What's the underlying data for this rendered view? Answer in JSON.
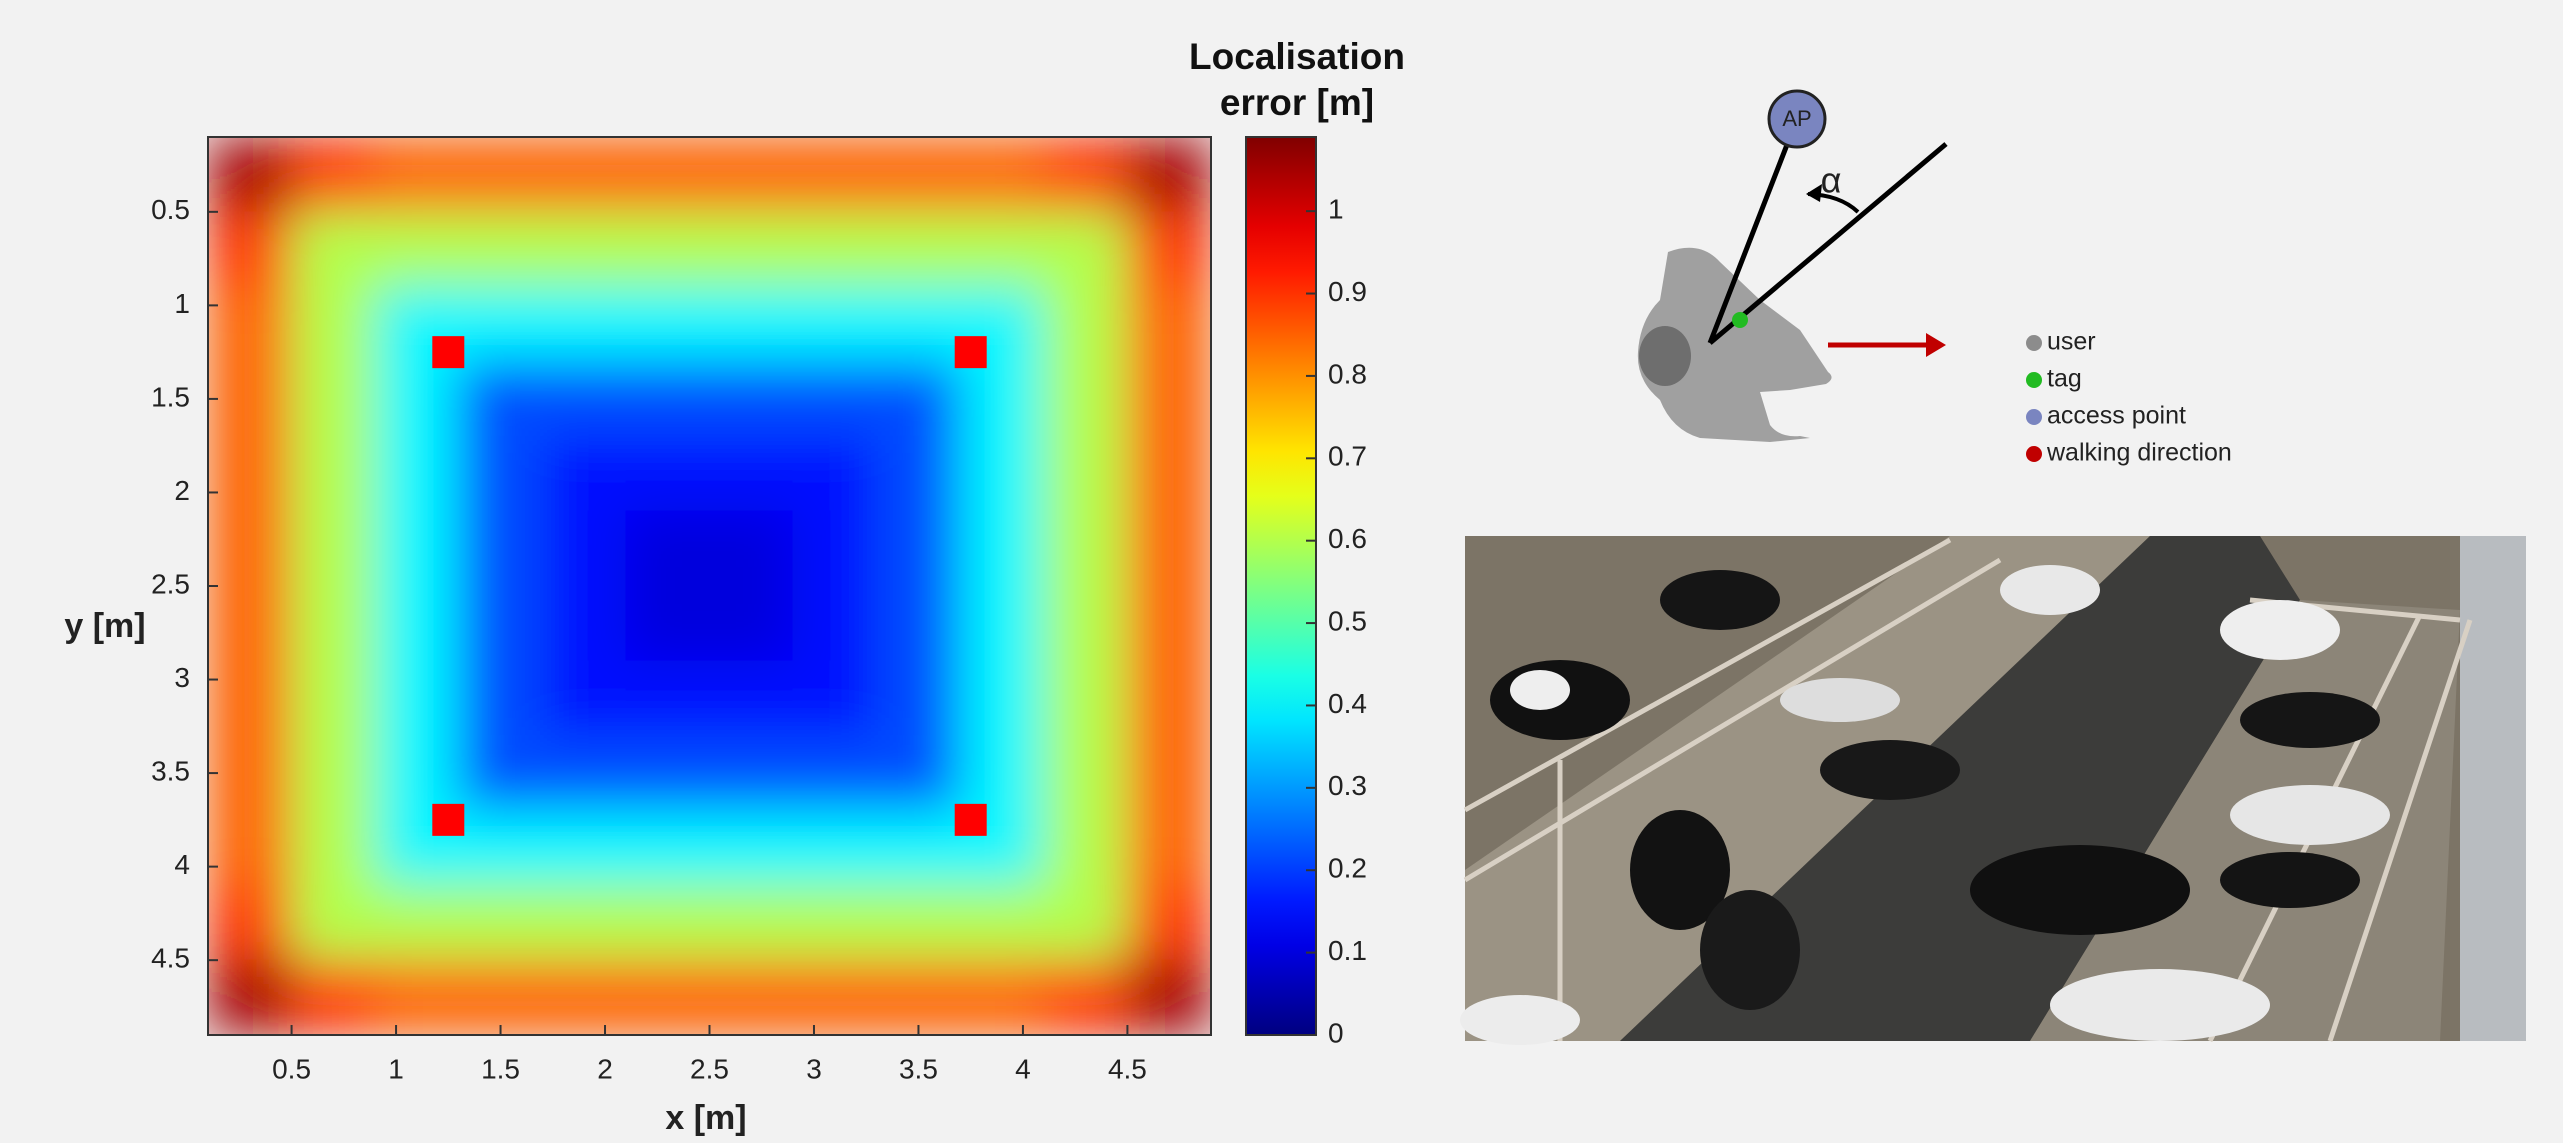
{
  "chart_data": {
    "type": "heatmap",
    "x_label": "x [m]",
    "y_label": "y [m]",
    "colorbar_title": "Localisation error [m]",
    "colormap": "jet",
    "x": [
      0.3,
      0.7,
      1.1,
      1.5,
      1.9,
      2.3,
      2.7,
      3.1,
      3.5,
      3.9,
      4.3,
      4.7
    ],
    "y": [
      0.3,
      0.7,
      1.1,
      1.5,
      1.9,
      2.3,
      2.7,
      3.1,
      3.5,
      3.9,
      4.3,
      4.7
    ],
    "z": [
      [
        1.05,
        0.9,
        0.85,
        0.85,
        0.85,
        0.85,
        0.85,
        0.85,
        0.85,
        0.85,
        0.9,
        1.05
      ],
      [
        0.9,
        0.6,
        0.6,
        0.6,
        0.6,
        0.6,
        0.6,
        0.6,
        0.6,
        0.6,
        0.6,
        0.9
      ],
      [
        0.85,
        0.6,
        0.4,
        0.4,
        0.4,
        0.4,
        0.4,
        0.4,
        0.4,
        0.4,
        0.6,
        0.85
      ],
      [
        0.85,
        0.6,
        0.4,
        0.22,
        0.22,
        0.22,
        0.22,
        0.22,
        0.22,
        0.4,
        0.6,
        0.85
      ],
      [
        0.85,
        0.6,
        0.4,
        0.22,
        0.15,
        0.15,
        0.15,
        0.15,
        0.22,
        0.4,
        0.6,
        0.85
      ],
      [
        0.85,
        0.6,
        0.4,
        0.22,
        0.15,
        0.1,
        0.1,
        0.15,
        0.22,
        0.4,
        0.6,
        0.85
      ],
      [
        0.85,
        0.6,
        0.4,
        0.22,
        0.15,
        0.1,
        0.1,
        0.15,
        0.22,
        0.4,
        0.6,
        0.85
      ],
      [
        0.85,
        0.6,
        0.4,
        0.22,
        0.15,
        0.15,
        0.15,
        0.15,
        0.22,
        0.4,
        0.6,
        0.85
      ],
      [
        0.85,
        0.6,
        0.4,
        0.22,
        0.22,
        0.22,
        0.22,
        0.22,
        0.22,
        0.4,
        0.6,
        0.85
      ],
      [
        0.85,
        0.6,
        0.4,
        0.4,
        0.4,
        0.4,
        0.4,
        0.4,
        0.4,
        0.4,
        0.6,
        0.85
      ],
      [
        0.9,
        0.6,
        0.6,
        0.6,
        0.6,
        0.6,
        0.6,
        0.6,
        0.6,
        0.6,
        0.6,
        0.9
      ],
      [
        1.05,
        0.9,
        0.85,
        0.85,
        0.85,
        0.85,
        0.85,
        0.85,
        0.85,
        0.85,
        0.9,
        1.05
      ]
    ],
    "anchors": {
      "x": [
        1.25,
        3.75,
        1.25,
        3.75
      ],
      "y": [
        1.25,
        1.25,
        3.75,
        3.75
      ],
      "color": "#ff0000"
    },
    "xlim": [
      0.1,
      4.9
    ],
    "ylim": [
      0.1,
      4.9
    ],
    "y_reversed": true,
    "xticks": [
      0.5,
      1,
      1.5,
      2,
      2.5,
      3,
      3.5,
      4,
      4.5
    ],
    "yticks": [
      0.5,
      1,
      1.5,
      2,
      2.5,
      3,
      3.5,
      4,
      4.5
    ],
    "clim": [
      0,
      1.09
    ],
    "cticks": [
      0,
      0.1,
      0.2,
      0.3,
      0.4,
      0.5,
      0.6,
      0.7,
      0.8,
      0.9,
      1
    ]
  },
  "diagram": {
    "ap_label": "AP",
    "angle_label": "α",
    "legend": [
      {
        "label": "user",
        "color": "#8c8c8c"
      },
      {
        "label": "tag",
        "color": "#22bb22"
      },
      {
        "label": "access point",
        "color": "#7a85c0"
      },
      {
        "label": "walking direction",
        "color": "#c00000"
      }
    ]
  }
}
